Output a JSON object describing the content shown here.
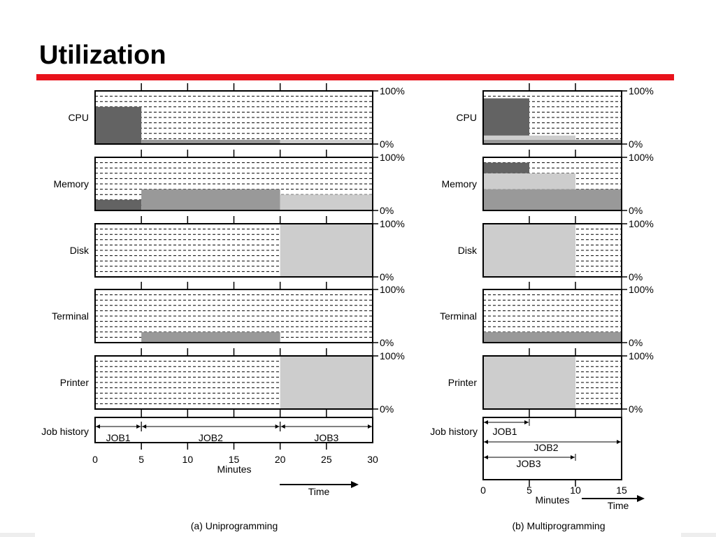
{
  "slide": {
    "title": "Utilization"
  },
  "colors": {
    "accent": "#e8121b",
    "job1": "#636363",
    "job2": "#999999",
    "job3": "#cdcdcd",
    "grid": "#000000"
  },
  "chart_data": [
    {
      "type": "area",
      "caption": "(a) Uniprogramming",
      "xlabel": "Minutes",
      "time_label": "Time",
      "x_ticks": [
        0,
        5,
        10,
        15,
        20,
        25,
        30
      ],
      "xlim": [
        0,
        30
      ],
      "ylim": [
        0,
        100
      ],
      "y_tick_labels": [
        "100%",
        "0%"
      ],
      "resources": [
        {
          "name": "CPU",
          "segments": [
            {
              "job": "job1",
              "start": 0,
              "end": 5,
              "value": 70
            },
            {
              "job": "job2",
              "start": 5,
              "end": 20,
              "value": 8
            },
            {
              "job": "job3",
              "start": 20,
              "end": 30,
              "value": 8
            }
          ]
        },
        {
          "name": "Memory",
          "segments": [
            {
              "job": "job1",
              "start": 0,
              "end": 5,
              "value": 20
            },
            {
              "job": "job2",
              "start": 5,
              "end": 20,
              "value": 40
            },
            {
              "job": "job3",
              "start": 20,
              "end": 30,
              "value": 30
            }
          ]
        },
        {
          "name": "Disk",
          "segments": [
            {
              "job": "job3",
              "start": 20,
              "end": 30,
              "value": 100
            }
          ]
        },
        {
          "name": "Terminal",
          "segments": [
            {
              "job": "job2",
              "start": 5,
              "end": 20,
              "value": 20
            }
          ]
        },
        {
          "name": "Printer",
          "segments": [
            {
              "job": "job3",
              "start": 20,
              "end": 30,
              "value": 100
            }
          ]
        }
      ],
      "job_history": {
        "label": "Job history",
        "jobs": [
          {
            "name": "JOB1",
            "start": 0,
            "end": 5
          },
          {
            "name": "JOB2",
            "start": 5,
            "end": 20
          },
          {
            "name": "JOB3",
            "start": 20,
            "end": 30
          }
        ]
      }
    },
    {
      "type": "area",
      "caption": "(b) Multiprogramming",
      "xlabel": "Minutes",
      "time_label": "Time",
      "x_ticks": [
        0,
        5,
        10,
        15
      ],
      "xlim": [
        0,
        15
      ],
      "ylim": [
        0,
        100
      ],
      "y_tick_labels": [
        "100%",
        "0%"
      ],
      "resources": [
        {
          "name": "CPU",
          "stacks": [
            {
              "start": 0,
              "end": 5,
              "layers": [
                {
                  "job": "job2",
                  "value": 8
                },
                {
                  "job": "job3",
                  "value": 8
                },
                {
                  "job": "job1",
                  "value": 70
                }
              ]
            },
            {
              "start": 5,
              "end": 10,
              "layers": [
                {
                  "job": "job2",
                  "value": 8
                },
                {
                  "job": "job3",
                  "value": 8
                }
              ]
            },
            {
              "start": 10,
              "end": 15,
              "layers": [
                {
                  "job": "job2",
                  "value": 8
                }
              ]
            }
          ]
        },
        {
          "name": "Memory",
          "stacks": [
            {
              "start": 0,
              "end": 5,
              "layers": [
                {
                  "job": "job2",
                  "value": 40
                },
                {
                  "job": "job3",
                  "value": 30
                },
                {
                  "job": "job1",
                  "value": 20
                }
              ]
            },
            {
              "start": 5,
              "end": 10,
              "layers": [
                {
                  "job": "job2",
                  "value": 40
                },
                {
                  "job": "job3",
                  "value": 30
                }
              ]
            },
            {
              "start": 10,
              "end": 15,
              "layers": [
                {
                  "job": "job2",
                  "value": 40
                }
              ]
            }
          ]
        },
        {
          "name": "Disk",
          "stacks": [
            {
              "start": 0,
              "end": 10,
              "layers": [
                {
                  "job": "job3",
                  "value": 100
                }
              ]
            }
          ]
        },
        {
          "name": "Terminal",
          "stacks": [
            {
              "start": 0,
              "end": 15,
              "layers": [
                {
                  "job": "job2",
                  "value": 20
                }
              ]
            }
          ]
        },
        {
          "name": "Printer",
          "stacks": [
            {
              "start": 0,
              "end": 10,
              "layers": [
                {
                  "job": "job3",
                  "value": 100
                }
              ]
            }
          ]
        }
      ],
      "job_history": {
        "label": "Job history",
        "jobs": [
          {
            "name": "JOB1",
            "start": 0,
            "end": 5
          },
          {
            "name": "JOB2",
            "start": 0,
            "end": 15
          },
          {
            "name": "JOB3",
            "start": 0,
            "end": 10
          }
        ]
      }
    }
  ]
}
